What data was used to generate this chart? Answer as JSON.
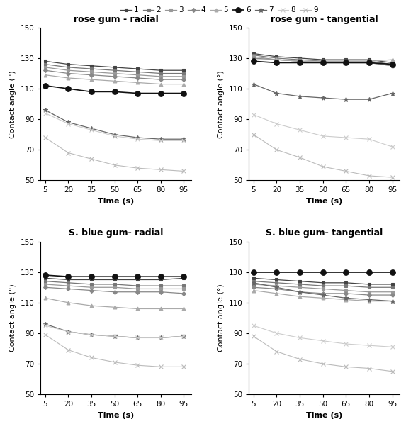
{
  "time": [
    5,
    20,
    35,
    50,
    65,
    80,
    95
  ],
  "title_fontsize": 9,
  "axis_label_fontsize": 8,
  "tick_fontsize": 7.5,
  "legend_fontsize": 7.5,
  "series_styles": [
    {
      "label": "1",
      "color": "#444444",
      "marker": "s",
      "linestyle": "-",
      "markersize": 3.5,
      "lw": 0.9
    },
    {
      "label": "2",
      "color": "#777777",
      "marker": "s",
      "linestyle": "-",
      "markersize": 3.5,
      "lw": 0.9
    },
    {
      "label": "3",
      "color": "#999999",
      "marker": "s",
      "linestyle": "-",
      "markersize": 3.5,
      "lw": 0.9
    },
    {
      "label": "4",
      "color": "#888888",
      "marker": "D",
      "linestyle": "-",
      "markersize": 3.0,
      "lw": 0.9
    },
    {
      "label": "5",
      "color": "#aaaaaa",
      "marker": "^",
      "linestyle": "-",
      "markersize": 3.5,
      "lw": 0.9
    },
    {
      "label": "6",
      "color": "#111111",
      "marker": "o",
      "linestyle": "-",
      "markersize": 5.5,
      "lw": 1.2
    },
    {
      "label": "7",
      "color": "#666666",
      "marker": "*",
      "linestyle": "-",
      "markersize": 5.0,
      "lw": 0.9
    },
    {
      "label": "8",
      "color": "#cccccc",
      "marker": "x",
      "linestyle": "-",
      "markersize": 4.0,
      "lw": 0.8
    },
    {
      "label": "9",
      "color": "#bbbbbb",
      "marker": "x",
      "linestyle": "-",
      "markersize": 4.0,
      "lw": 0.8
    }
  ],
  "rose_radial": [
    [
      128,
      126,
      125,
      124,
      123,
      122,
      122
    ],
    [
      126,
      124,
      123,
      122,
      121,
      120,
      120
    ],
    [
      124,
      122,
      121,
      120,
      119,
      118,
      118
    ],
    [
      122,
      120,
      119,
      118,
      117,
      116,
      116
    ],
    [
      119,
      117,
      116,
      115,
      114,
      113,
      113
    ],
    [
      112,
      110,
      108,
      108,
      107,
      107,
      107
    ],
    [
      96,
      88,
      84,
      80,
      78,
      77,
      77
    ],
    [
      94,
      87,
      83,
      79,
      77,
      76,
      76
    ],
    [
      78,
      68,
      64,
      60,
      58,
      57,
      56
    ]
  ],
  "rose_tangential": [
    [
      133,
      131,
      130,
      129,
      129,
      129,
      127
    ],
    [
      132,
      130,
      129,
      128,
      128,
      128,
      126
    ],
    [
      131,
      129,
      128,
      127,
      127,
      127,
      125
    ],
    [
      130,
      129,
      128,
      127,
      127,
      127,
      125
    ],
    [
      129,
      129,
      128,
      128,
      128,
      128,
      129
    ],
    [
      128,
      127,
      127,
      127,
      127,
      127,
      126
    ],
    [
      113,
      107,
      105,
      104,
      103,
      103,
      107
    ],
    [
      93,
      87,
      83,
      79,
      78,
      77,
      72
    ],
    [
      80,
      70,
      65,
      59,
      56,
      53,
      52
    ]
  ],
  "sblue_radial": [
    [
      126,
      125,
      125,
      125,
      125,
      125,
      126
    ],
    [
      124,
      123,
      122,
      122,
      121,
      121,
      121
    ],
    [
      122,
      121,
      120,
      120,
      119,
      119,
      119
    ],
    [
      120,
      119,
      118,
      117,
      117,
      117,
      116
    ],
    [
      113,
      110,
      108,
      107,
      106,
      106,
      106
    ],
    [
      128,
      127,
      127,
      127,
      127,
      127,
      127
    ],
    [
      96,
      91,
      89,
      88,
      87,
      87,
      88
    ],
    [
      95,
      91,
      89,
      88,
      87,
      87,
      88
    ],
    [
      89,
      79,
      74,
      71,
      69,
      68,
      68
    ]
  ],
  "sblue_tangential": [
    [
      126,
      125,
      124,
      123,
      123,
      122,
      122
    ],
    [
      124,
      123,
      122,
      121,
      121,
      120,
      120
    ],
    [
      122,
      121,
      120,
      119,
      118,
      117,
      117
    ],
    [
      120,
      119,
      117,
      116,
      116,
      115,
      115
    ],
    [
      118,
      116,
      114,
      113,
      112,
      111,
      111
    ],
    [
      130,
      130,
      130,
      130,
      130,
      130,
      130
    ],
    [
      123,
      120,
      117,
      115,
      113,
      112,
      111
    ],
    [
      95,
      90,
      87,
      85,
      83,
      82,
      81
    ],
    [
      88,
      78,
      73,
      70,
      68,
      67,
      65
    ]
  ],
  "ylim": [
    50,
    150
  ],
  "yticks": [
    50,
    70,
    90,
    110,
    130,
    150
  ],
  "xticks": [
    5,
    20,
    35,
    50,
    65,
    80,
    95
  ]
}
